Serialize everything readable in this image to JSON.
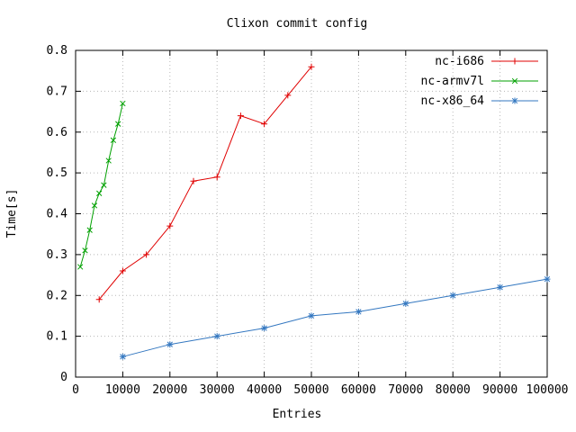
{
  "chart_data": {
    "type": "line",
    "title": "Clixon commit config",
    "xlabel": "Entries",
    "ylabel": "Time[s]",
    "xlim": [
      0,
      100000
    ],
    "ylim": [
      0,
      0.8
    ],
    "x_ticks": [
      0,
      10000,
      20000,
      30000,
      40000,
      50000,
      60000,
      70000,
      80000,
      90000,
      100000
    ],
    "y_ticks": [
      0,
      0.1,
      0.2,
      0.3,
      0.4,
      0.5,
      0.6,
      0.7,
      0.8
    ],
    "grid": true,
    "legend_position": "top-right-inside",
    "series": [
      {
        "name": "nc-i686",
        "color": "#e00000",
        "marker": "plus",
        "x": [
          5000,
          10000,
          15000,
          20000,
          25000,
          30000,
          35000,
          40000,
          45000,
          50000
        ],
        "y": [
          0.19,
          0.26,
          0.3,
          0.37,
          0.48,
          0.49,
          0.64,
          0.62,
          0.69,
          0.76
        ]
      },
      {
        "name": "nc-armv7l",
        "color": "#00a000",
        "marker": "cross",
        "x": [
          1000,
          2000,
          3000,
          4000,
          5000,
          6000,
          7000,
          8000,
          9000,
          10000
        ],
        "y": [
          0.27,
          0.31,
          0.36,
          0.42,
          0.45,
          0.47,
          0.53,
          0.58,
          0.62,
          0.67
        ]
      },
      {
        "name": "nc-x86_64",
        "color": "#3377c0",
        "marker": "star",
        "x": [
          10000,
          20000,
          30000,
          40000,
          50000,
          60000,
          70000,
          80000,
          90000,
          100000
        ],
        "y": [
          0.05,
          0.08,
          0.1,
          0.12,
          0.15,
          0.16,
          0.18,
          0.2,
          0.22,
          0.24
        ]
      }
    ]
  }
}
